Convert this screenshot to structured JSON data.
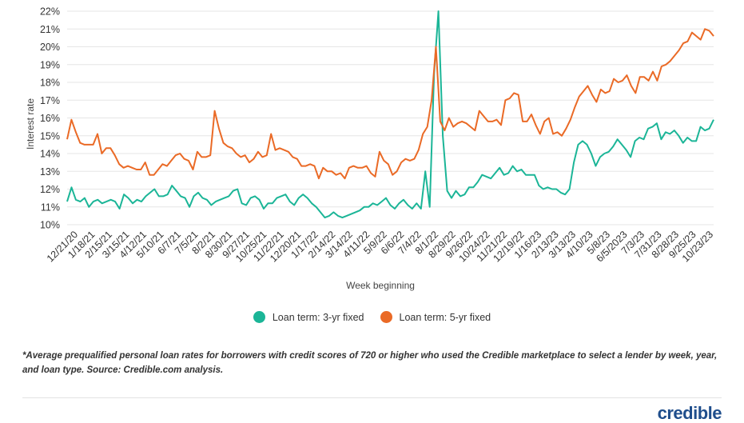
{
  "chart_data": {
    "type": "line",
    "title": "",
    "xlabel": "Week beginning",
    "ylabel": "Interest rate",
    "ylim": [
      10,
      22
    ],
    "yticks": [
      "10%",
      "11%",
      "12%",
      "13%",
      "14%",
      "15%",
      "16%",
      "17%",
      "18%",
      "19%",
      "20%",
      "21%",
      "22%"
    ],
    "x_tick_labels": [
      "12/21/20",
      "1/18/21",
      "2/15/21",
      "3/15/21",
      "4/12/21",
      "5/10/21",
      "6/7/21",
      "7/5/21",
      "8/2/21",
      "8/30/21",
      "9/27/21",
      "10/25/21",
      "11/22/21",
      "12/20/21",
      "1/17/22",
      "2/14/22",
      "3/14/22",
      "4/11/22",
      "5/9/22",
      "6/6/22",
      "7/4/22",
      "8/1/22",
      "8/29/22",
      "9/26/22",
      "10/24/22",
      "11/21/22",
      "12/19/22",
      "1/16/23",
      "2/13/23",
      "3/13/23",
      "4/10/23",
      "5/8/23",
      "6/5/2023",
      "7/3/23",
      "7/31/23",
      "8/28/23",
      "9/25/23",
      "10/23/23"
    ],
    "grid": "horizontal",
    "legend_position": "bottom",
    "series": [
      {
        "name": "Loan term: 3-yr fixed",
        "color": "#1bb597",
        "values": [
          11.3,
          12.1,
          11.4,
          11.3,
          11.5,
          11.0,
          11.3,
          11.4,
          11.2,
          11.3,
          11.4,
          11.3,
          10.9,
          11.7,
          11.5,
          11.2,
          11.4,
          11.3,
          11.6,
          11.8,
          12.0,
          11.6,
          11.6,
          11.7,
          12.2,
          11.9,
          11.6,
          11.5,
          11.0,
          11.6,
          11.8,
          11.5,
          11.4,
          11.1,
          11.3,
          11.4,
          11.5,
          11.6,
          11.9,
          12.0,
          11.2,
          11.1,
          11.5,
          11.6,
          11.4,
          10.9,
          11.2,
          11.2,
          11.5,
          11.6,
          11.7,
          11.3,
          11.1,
          11.5,
          11.7,
          11.5,
          11.2,
          11.0,
          10.7,
          10.4,
          10.5,
          10.7,
          10.5,
          10.4,
          10.5,
          10.6,
          10.7,
          10.8,
          11.0,
          11.0,
          11.2,
          11.1,
          11.3,
          11.5,
          11.1,
          10.9,
          11.2,
          11.4,
          11.1,
          10.9,
          11.2,
          10.9,
          13.0,
          11.0,
          18.5,
          22.0,
          15.0,
          11.9,
          11.5,
          11.9,
          11.6,
          11.7,
          12.1,
          12.1,
          12.4,
          12.8,
          12.7,
          12.6,
          12.9,
          13.2,
          12.8,
          12.9,
          13.3,
          13.0,
          13.1,
          12.8,
          12.8,
          12.8,
          12.2,
          12.0,
          12.1,
          12.0,
          12.0,
          11.8,
          11.7,
          12.0,
          13.5,
          14.5,
          14.7,
          14.5,
          14.0,
          13.3,
          13.8,
          14.0,
          14.1,
          14.4,
          14.8,
          14.5,
          14.2,
          13.8,
          14.7,
          14.9,
          14.8,
          15.4,
          15.5,
          15.7,
          14.8,
          15.2,
          15.1,
          15.3,
          15.0,
          14.6,
          14.9,
          14.7,
          14.7,
          15.5,
          15.3,
          15.4,
          15.9
        ]
      },
      {
        "name": "Loan term: 5-yr fixed",
        "color": "#ea6a26",
        "values": [
          14.8,
          15.9,
          15.2,
          14.6,
          14.5,
          14.5,
          14.5,
          15.1,
          14.0,
          14.3,
          14.3,
          13.9,
          13.4,
          13.2,
          13.3,
          13.2,
          13.1,
          13.1,
          13.5,
          12.8,
          12.8,
          13.1,
          13.4,
          13.3,
          13.6,
          13.9,
          14.0,
          13.7,
          13.6,
          13.1,
          14.1,
          13.8,
          13.8,
          13.9,
          16.4,
          15.4,
          14.6,
          14.4,
          14.3,
          14.0,
          13.8,
          13.9,
          13.5,
          13.7,
          14.1,
          13.8,
          13.9,
          15.1,
          14.2,
          14.3,
          14.2,
          14.1,
          13.8,
          13.7,
          13.3,
          13.3,
          13.4,
          13.3,
          12.6,
          13.2,
          13.0,
          13.0,
          12.8,
          12.9,
          12.6,
          13.2,
          13.3,
          13.2,
          13.2,
          13.3,
          12.9,
          12.7,
          14.1,
          13.6,
          13.4,
          12.8,
          13.0,
          13.5,
          13.7,
          13.6,
          13.7,
          14.2,
          15.1,
          15.5,
          17.0,
          20.0,
          15.8,
          15.3,
          16.0,
          15.5,
          15.7,
          15.8,
          15.7,
          15.5,
          15.3,
          16.4,
          16.1,
          15.8,
          15.8,
          15.9,
          15.6,
          17.0,
          17.1,
          17.4,
          17.3,
          15.8,
          15.8,
          16.2,
          15.6,
          15.1,
          15.8,
          16.0,
          15.1,
          15.2,
          15.0,
          15.4,
          15.9,
          16.6,
          17.2,
          17.5,
          17.8,
          17.3,
          16.9,
          17.6,
          17.4,
          17.5,
          18.2,
          18.0,
          18.1,
          18.4,
          17.8,
          17.4,
          18.3,
          18.3,
          18.1,
          18.6,
          18.1,
          18.9,
          19.0,
          19.2,
          19.5,
          19.8,
          20.2,
          20.3,
          20.8,
          20.6,
          20.4,
          21.0,
          20.9,
          20.6
        ]
      }
    ]
  },
  "legend": {
    "items": [
      {
        "label": "Loan term: 3-yr fixed",
        "color": "#1bb597"
      },
      {
        "label": "Loan term: 5-yr fixed",
        "color": "#ea6a26"
      }
    ]
  },
  "footnote": "*Average prequalified personal loan rates for borrowers with credit scores of 720 or higher who used the Credible marketplace to select a lender by week, year, and loan type. Source: Credible.com analysis.",
  "brand": {
    "logo_text": "credible",
    "color": "#1f4e8c"
  }
}
